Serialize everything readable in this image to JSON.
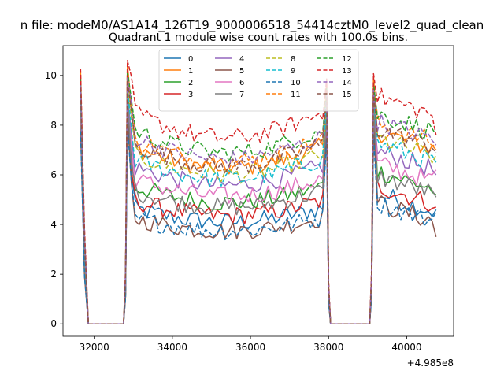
{
  "chart_data": {
    "type": "line",
    "suptitle": "n file: modeM0/AS1A14_126T19_9000006518_54414cztM0_level2_quad_clean",
    "title": "Quadrant 1 module wise count rates with 100.0s bins.",
    "xlabel": "",
    "ylabel": "",
    "x_offset_label": "+4.985e8",
    "xlim": [
      31200,
      41200
    ],
    "ylim": [
      -0.5,
      11.2
    ],
    "xticks": [
      32000,
      34000,
      36000,
      38000,
      40000
    ],
    "xtick_labels": [
      "32000",
      "34000",
      "36000",
      "38000",
      "40000"
    ],
    "yticks": [
      0,
      2,
      4,
      6,
      8,
      10
    ],
    "ytick_labels": [
      "0",
      "2",
      "4",
      "6",
      "8",
      "10"
    ],
    "grid": false,
    "legend_position": "top-center",
    "legend_columns": 4,
    "bin_seconds": 100,
    "segments": [
      {
        "x_start": 31650,
        "x_end": 32750,
        "pattern": "drop"
      },
      {
        "x_start": 32850,
        "x_end": 37950,
        "pattern": "full"
      },
      {
        "x_start": 38050,
        "x_end": 39050,
        "pattern": "zero"
      },
      {
        "x_start": 39150,
        "x_end": 40750,
        "pattern": "tail"
      }
    ],
    "series": [
      {
        "name": "0",
        "color": "#1f77b4",
        "dash": "solid",
        "level": 4.7,
        "peak": 8.6,
        "spike_end": 4.6
      },
      {
        "name": "1",
        "color": "#ff7f0e",
        "dash": "solid",
        "level": 7.2,
        "peak": 10.5,
        "spike_end": 7.0
      },
      {
        "name": "2",
        "color": "#2ca02c",
        "dash": "solid",
        "level": 5.6,
        "peak": 9.8,
        "spike_end": 5.2
      },
      {
        "name": "3",
        "color": "#d62728",
        "dash": "solid",
        "level": 5.0,
        "peak": 8.2,
        "spike_end": 4.7
      },
      {
        "name": "4",
        "color": "#9467bd",
        "dash": "solid",
        "level": 6.4,
        "peak": 9.2,
        "spike_end": 6.0
      },
      {
        "name": "5",
        "color": "#8c564b",
        "dash": "solid",
        "level": 4.3,
        "peak": 8.4,
        "spike_end": 3.5
      },
      {
        "name": "6",
        "color": "#e377c2",
        "dash": "solid",
        "level": 5.9,
        "peak": 9.0,
        "spike_end": 6.2
      },
      {
        "name": "7",
        "color": "#7f7f7f",
        "dash": "solid",
        "level": 5.4,
        "peak": 9.4,
        "spike_end": 5.1
      },
      {
        "name": "8",
        "color": "#bcbd22",
        "dash": "dashed",
        "level": 6.9,
        "peak": 9.6,
        "spike_end": 6.8
      },
      {
        "name": "9",
        "color": "#17becf",
        "dash": "dashed",
        "level": 6.7,
        "peak": 9.5,
        "spike_end": 6.5
      },
      {
        "name": "10",
        "color": "#1f77b4",
        "dash": "dashed",
        "level": 4.3,
        "peak": 8.0,
        "spike_end": 4.5
      },
      {
        "name": "11",
        "color": "#ff7f0e",
        "dash": "dashed",
        "level": 7.5,
        "peak": 10.0,
        "spike_end": 7.2
      },
      {
        "name": "12",
        "color": "#2ca02c",
        "dash": "dashed",
        "level": 7.9,
        "peak": 10.2,
        "spike_end": 7.6
      },
      {
        "name": "13",
        "color": "#d62728",
        "dash": "dashed",
        "level": 8.6,
        "peak": 10.6,
        "spike_end": 7.6
      },
      {
        "name": "14",
        "color": "#9467bd",
        "dash": "dashed",
        "level": 7.6,
        "peak": 9.9,
        "spike_end": 7.2
      },
      {
        "name": "15",
        "color": "#8c564b",
        "dash": "dashed",
        "level": 7.3,
        "peak": 9.8,
        "spike_end": 6.9
      }
    ]
  }
}
